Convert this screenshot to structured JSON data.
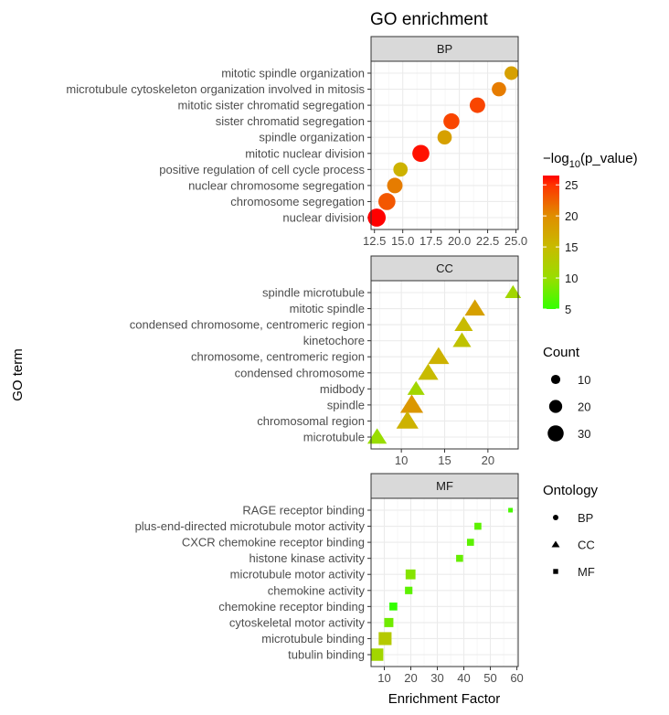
{
  "chart_data": {
    "type": "scatter",
    "title": "GO enrichment",
    "xlabel": "Enrichment Factor",
    "ylabel": "GO term",
    "grid": true,
    "panels": [
      {
        "name": "BP",
        "shape": "circle",
        "xlim": [
          12.2,
          25.2
        ],
        "ticks": [
          12.5,
          15,
          17.5,
          20,
          22.5,
          25
        ],
        "tick_labels": [
          "12.5",
          "15.0",
          "17.5",
          "20.0",
          "22.5",
          "25.0"
        ],
        "terms": [
          "mitotic spindle organization",
          "microtubule cytoskeleton organization involved in mitosis",
          "mitotic sister chromatid segregation",
          "sister chromatid segregation",
          "spindle organization",
          "mitotic nuclear division",
          "positive regulation of cell cycle process",
          "nuclear chromosome segregation",
          "chromosome segregation",
          "nuclear division"
        ],
        "x": [
          24.6,
          23.5,
          21.6,
          19.3,
          18.7,
          16.6,
          14.8,
          14.3,
          13.6,
          12.7
        ],
        "neglog10p": [
          18,
          21,
          24,
          24,
          18,
          26,
          16,
          21,
          23,
          26.5
        ],
        "count": [
          22,
          24,
          28,
          30,
          24,
          34,
          24,
          28,
          34,
          38
        ]
      },
      {
        "name": "CC",
        "shape": "triangle",
        "xlim": [
          6.5,
          23.5
        ],
        "ticks": [
          10,
          15,
          20
        ],
        "tick_labels": [
          "10",
          "15",
          "20"
        ],
        "terms": [
          "spindle microtubule",
          "mitotic spindle",
          "condensed chromosome, centromeric region",
          "kinetochore",
          "chromosome, centromeric region",
          "condensed chromosome",
          "midbody",
          "spindle",
          "chromosomal region",
          "microtubule"
        ],
        "x": [
          22.9,
          18.5,
          17.2,
          17.0,
          14.3,
          13.1,
          11.7,
          11.2,
          10.7,
          7.2
        ],
        "neglog10p": [
          11,
          18,
          15,
          14,
          16,
          15,
          11,
          19,
          16,
          10
        ],
        "count": [
          14,
          22,
          18,
          18,
          24,
          22,
          16,
          28,
          26,
          20
        ]
      },
      {
        "name": "MF",
        "shape": "square",
        "xlim": [
          5,
          60.5
        ],
        "ticks": [
          10,
          20,
          30,
          40,
          50,
          60
        ],
        "tick_labels": [
          "10",
          "20",
          "30",
          "40",
          "50",
          "60"
        ],
        "terms": [
          "RAGE receptor binding",
          "plus-end-directed microtubule motor activity",
          "CXCR chemokine receptor binding",
          "histone kinase activity",
          "microtubule motor activity",
          "chemokine activity",
          "chemokine receptor binding",
          "cytoskeletal motor activity",
          "microtubule binding",
          "tubulin binding"
        ],
        "x": [
          57.6,
          45.3,
          42.5,
          38.4,
          19.9,
          19.2,
          13.4,
          11.7,
          10.3,
          7.3
        ],
        "neglog10p": [
          6,
          7,
          7,
          7.5,
          9,
          7,
          5,
          8,
          13,
          11
        ],
        "count": [
          3,
          7,
          7,
          7,
          14,
          8,
          9,
          12,
          24,
          22
        ]
      }
    ],
    "color_legend": {
      "title_prefix": "−log",
      "title_sub": "10",
      "title_suffix": "(p_value)",
      "range": [
        5,
        26.5
      ],
      "ticks": [
        "5",
        "10",
        "15",
        "20",
        "25"
      ],
      "stops": [
        {
          "v": 5,
          "c": "#33ff00"
        },
        {
          "v": 10,
          "c": "#99dd00"
        },
        {
          "v": 15,
          "c": "#c8bb00"
        },
        {
          "v": 20,
          "c": "#e08e00"
        },
        {
          "v": 25,
          "c": "#ff3300"
        },
        {
          "v": 26.5,
          "c": "#ff0000"
        }
      ]
    },
    "size_legend": {
      "title": "Count",
      "values": [
        10,
        20,
        30
      ],
      "labels": [
        "10",
        "20",
        "30"
      ]
    },
    "shape_legend": {
      "title": "Ontology",
      "labels": [
        "BP",
        "CC",
        "MF"
      ]
    }
  }
}
